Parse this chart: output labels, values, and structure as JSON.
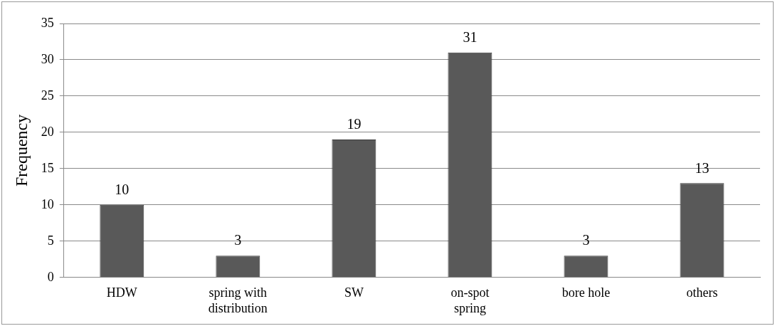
{
  "chart_data": {
    "type": "bar",
    "ylabel": "Frequency",
    "categories": [
      "HDW",
      "spring with distribution",
      "SW",
      "on-spot spring",
      "bore hole",
      "others"
    ],
    "values": [
      10,
      3,
      19,
      31,
      3,
      13
    ],
    "color": "#595959",
    "ylim": [
      0,
      35
    ],
    "yticks": [
      0,
      5,
      10,
      15,
      20,
      25,
      30,
      35
    ],
    "grid": "y",
    "data_labels": true,
    "legend": false
  }
}
